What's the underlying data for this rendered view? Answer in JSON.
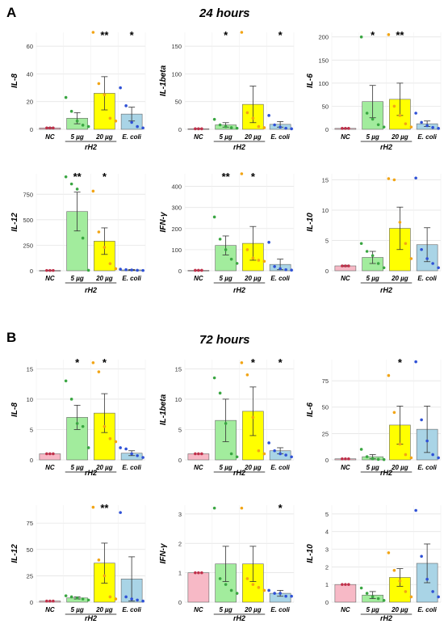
{
  "panels": [
    {
      "letter": "A",
      "title": "24 hours"
    },
    {
      "letter": "B",
      "title": "72 hours"
    }
  ],
  "colors": {
    "NC": "#f7b9c6",
    "5 µg": "#a2ec9d",
    "20 µg": "#ffff00",
    "E. coli": "#a9d4e6",
    "dot_NC": "#c0304a",
    "dot_5 µg": "#3aa642",
    "dot_20 µg": "#f2a516",
    "dot_E. coli": "#2f51d6",
    "grid": "#e0e0e0",
    "error": "#333333"
  },
  "chart_data": [
    {
      "panel": "A",
      "type": "bar",
      "ylabel": "IL-8",
      "ylim": [
        0,
        70
      ],
      "yticks": [
        0,
        20,
        40,
        60
      ],
      "categories": [
        "NC",
        "5 µg",
        "20 µg",
        "E. coli"
      ],
      "group_label": "rH2",
      "values": [
        1,
        8,
        26,
        11
      ],
      "errors": [
        0.3,
        4,
        12,
        5
      ],
      "points": [
        [
          1,
          1,
          1
        ],
        [
          23,
          13,
          6,
          3,
          2
        ],
        [
          72,
          33,
          25,
          8,
          6
        ],
        [
          30,
          17,
          5,
          2,
          1
        ]
      ],
      "significance": [
        "",
        "",
        "**",
        "*"
      ]
    },
    {
      "panel": "A",
      "type": "bar",
      "ylabel": "IL-1beta",
      "ylim": [
        0,
        175
      ],
      "yticks": [
        0,
        50,
        100,
        150
      ],
      "categories": [
        "NC",
        "5 µg",
        "20 µg",
        "E. coli"
      ],
      "group_label": "rH2",
      "values": [
        1,
        8,
        45,
        9
      ],
      "errors": [
        0.3,
        4,
        33,
        5
      ],
      "points": [
        [
          1,
          1,
          1
        ],
        [
          18,
          8,
          5,
          3,
          2
        ],
        [
          178,
          30,
          20,
          5,
          3
        ],
        [
          25,
          8,
          4,
          2,
          1
        ]
      ],
      "significance": [
        "",
        "*",
        "",
        "*"
      ]
    },
    {
      "panel": "A",
      "type": "bar",
      "ylabel": "IL-6",
      "ylim": [
        0,
        210
      ],
      "yticks": [
        0,
        50,
        100,
        150,
        200
      ],
      "categories": [
        "NC",
        "5 µg",
        "20 µg",
        "E. coli"
      ],
      "group_label": "rH2",
      "values": [
        2,
        60,
        65,
        12
      ],
      "errors": [
        0.5,
        35,
        35,
        6
      ],
      "points": [
        [
          2,
          2,
          2
        ],
        [
          200,
          35,
          22,
          10,
          5
        ],
        [
          205,
          50,
          30,
          12,
          5
        ],
        [
          35,
          15,
          8,
          4,
          2
        ]
      ],
      "significance": [
        "",
        "*",
        "**",
        ""
      ]
    },
    {
      "panel": "A",
      "type": "bar",
      "ylabel": "IL-12",
      "ylim": [
        0,
        950
      ],
      "yticks": [
        0,
        250,
        500,
        750
      ],
      "categories": [
        "NC",
        "5 µg",
        "20 µg",
        "E. coli"
      ],
      "group_label": "rH2",
      "values": [
        3,
        580,
        290,
        8
      ],
      "errors": [
        1,
        190,
        130,
        4
      ],
      "points": [
        [
          3,
          3,
          3
        ],
        [
          920,
          850,
          800,
          320,
          5
        ],
        [
          780,
          380,
          230,
          70,
          20
        ],
        [
          15,
          10,
          8,
          5,
          3
        ]
      ],
      "significance": [
        "",
        "**",
        "*",
        ""
      ]
    },
    {
      "panel": "A",
      "type": "bar",
      "ylabel": "IFN-γ",
      "ylim": [
        0,
        460
      ],
      "yticks": [
        0,
        100,
        200,
        300,
        400
      ],
      "categories": [
        "NC",
        "5 µg",
        "20 µg",
        "E. coli"
      ],
      "group_label": "rH2",
      "values": [
        2,
        120,
        130,
        30
      ],
      "errors": [
        0.5,
        45,
        80,
        25
      ],
      "points": [
        [
          2,
          2,
          2
        ],
        [
          255,
          150,
          100,
          55,
          35
        ],
        [
          460,
          100,
          60,
          50,
          45
        ],
        [
          135,
          20,
          10,
          5,
          3
        ]
      ],
      "significance": [
        "",
        "**",
        "*",
        ""
      ]
    },
    {
      "panel": "A",
      "type": "bar",
      "ylabel": "IL-10",
      "ylim": [
        0,
        16
      ],
      "yticks": [
        0,
        5,
        10,
        15
      ],
      "categories": [
        "NC",
        "5 µg",
        "20 µg",
        "E. coli"
      ],
      "group_label": "rH2",
      "values": [
        0.8,
        2.2,
        7,
        4.3
      ],
      "errors": [
        0.1,
        1,
        3.5,
        2.8
      ],
      "points": [
        [
          0.8,
          0.8,
          0.8
        ],
        [
          4.5,
          3.2,
          2.5,
          1.2,
          0.5
        ],
        [
          15.2,
          15,
          8,
          4.5,
          2
        ],
        [
          15.3,
          3.5,
          2,
          1.2,
          0.5
        ]
      ],
      "significance": [
        "",
        "",
        "",
        ""
      ]
    },
    {
      "panel": "B",
      "type": "bar",
      "ylabel": "IL-8",
      "ylim": [
        0,
        16.5
      ],
      "yticks": [
        0,
        5,
        10,
        15
      ],
      "categories": [
        "NC",
        "5 µg",
        "20 µg",
        "E. coli"
      ],
      "group_label": "rH2",
      "values": [
        1,
        7,
        7.7,
        1.1
      ],
      "errors": [
        0,
        2,
        3.2,
        0.4
      ],
      "points": [
        [
          1,
          1,
          1
        ],
        [
          13,
          10,
          6,
          5.5,
          2
        ],
        [
          16,
          14.5,
          5.5,
          3.5,
          3
        ],
        [
          2,
          1.8,
          1,
          0.7,
          0.4
        ]
      ],
      "significance": [
        "",
        "*",
        "*",
        ""
      ]
    },
    {
      "panel": "B",
      "type": "bar",
      "ylabel": "IL-1beta",
      "ylim": [
        0,
        16.5
      ],
      "yticks": [
        0,
        5,
        10,
        15
      ],
      "categories": [
        "NC",
        "5 µg",
        "20 µg",
        "E. coli"
      ],
      "group_label": "rH2",
      "values": [
        1,
        6.5,
        8,
        1.5
      ],
      "errors": [
        0,
        3.5,
        4,
        0.5
      ],
      "points": [
        [
          1,
          1,
          1
        ],
        [
          13.5,
          11,
          6,
          1,
          0.5
        ],
        [
          16,
          14,
          7,
          1.5,
          1
        ],
        [
          2.8,
          1.5,
          1,
          0.8,
          0.5
        ]
      ],
      "significance": [
        "",
        "",
        "*",
        "*"
      ]
    },
    {
      "panel": "B",
      "type": "bar",
      "ylabel": "IL-6",
      "ylim": [
        0,
        95
      ],
      "yticks": [
        0,
        25,
        50,
        75
      ],
      "categories": [
        "NC",
        "5 µg",
        "20 µg",
        "E. coli"
      ],
      "group_label": "rH2",
      "values": [
        1,
        3,
        33,
        29
      ],
      "errors": [
        0,
        2,
        18,
        22
      ],
      "points": [
        [
          1,
          1,
          1
        ],
        [
          10,
          3,
          1,
          0.5,
          0.3
        ],
        [
          80,
          45,
          15,
          5,
          2
        ],
        [
          93,
          38,
          18,
          5,
          2
        ]
      ],
      "significance": [
        "",
        "",
        "*",
        ""
      ]
    },
    {
      "panel": "B",
      "type": "bar",
      "ylabel": "IL-12",
      "ylim": [
        0,
        92
      ],
      "yticks": [
        0,
        25,
        50,
        75
      ],
      "categories": [
        "NC",
        "5 µg",
        "20 µg",
        "E. coli"
      ],
      "group_label": "rH2",
      "values": [
        1,
        4,
        37,
        22
      ],
      "errors": [
        0,
        1,
        19,
        21
      ],
      "points": [
        [
          1,
          1,
          1
        ],
        [
          6,
          5,
          4,
          3,
          2
        ],
        [
          90,
          40,
          25,
          5,
          3
        ],
        [
          85,
          5,
          3,
          2,
          1
        ]
      ],
      "significance": [
        "",
        "",
        "**",
        ""
      ]
    },
    {
      "panel": "B",
      "type": "bar",
      "ylabel": "IFN-γ",
      "ylim": [
        0,
        3.3
      ],
      "yticks": [
        0,
        1,
        2,
        3
      ],
      "categories": [
        "NC",
        "5 µg",
        "20 µg",
        "E. coli"
      ],
      "group_label": "rH2",
      "values": [
        1,
        1.3,
        1.3,
        0.3
      ],
      "errors": [
        0,
        0.6,
        0.6,
        0.1
      ],
      "points": [
        [
          1,
          1,
          1
        ],
        [
          3.2,
          0.8,
          0.6,
          0.4,
          0.3
        ],
        [
          3.2,
          0.8,
          0.6,
          0.5,
          0.4
        ],
        [
          0.4,
          0.3,
          0.3,
          0.2,
          0.2
        ]
      ],
      "significance": [
        "",
        "",
        "",
        "*"
      ]
    },
    {
      "panel": "B",
      "type": "bar",
      "ylabel": "IL-10",
      "ylim": [
        0,
        5.5
      ],
      "yticks": [
        0,
        1,
        2,
        3,
        4,
        5
      ],
      "categories": [
        "NC",
        "5 µg",
        "20 µg",
        "E. coli"
      ],
      "group_label": "rH2",
      "values": [
        1,
        0.4,
        1.4,
        2.2
      ],
      "errors": [
        0,
        0.2,
        0.5,
        1.1
      ],
      "points": [
        [
          1,
          1,
          1
        ],
        [
          0.8,
          0.5,
          0.3,
          0.2,
          0.1
        ],
        [
          2.8,
          1.8,
          1.2,
          0.6,
          0.3
        ],
        [
          5.2,
          2.6,
          1.3,
          0.6,
          0.3
        ]
      ],
      "significance": [
        "",
        "",
        "",
        ""
      ]
    }
  ]
}
